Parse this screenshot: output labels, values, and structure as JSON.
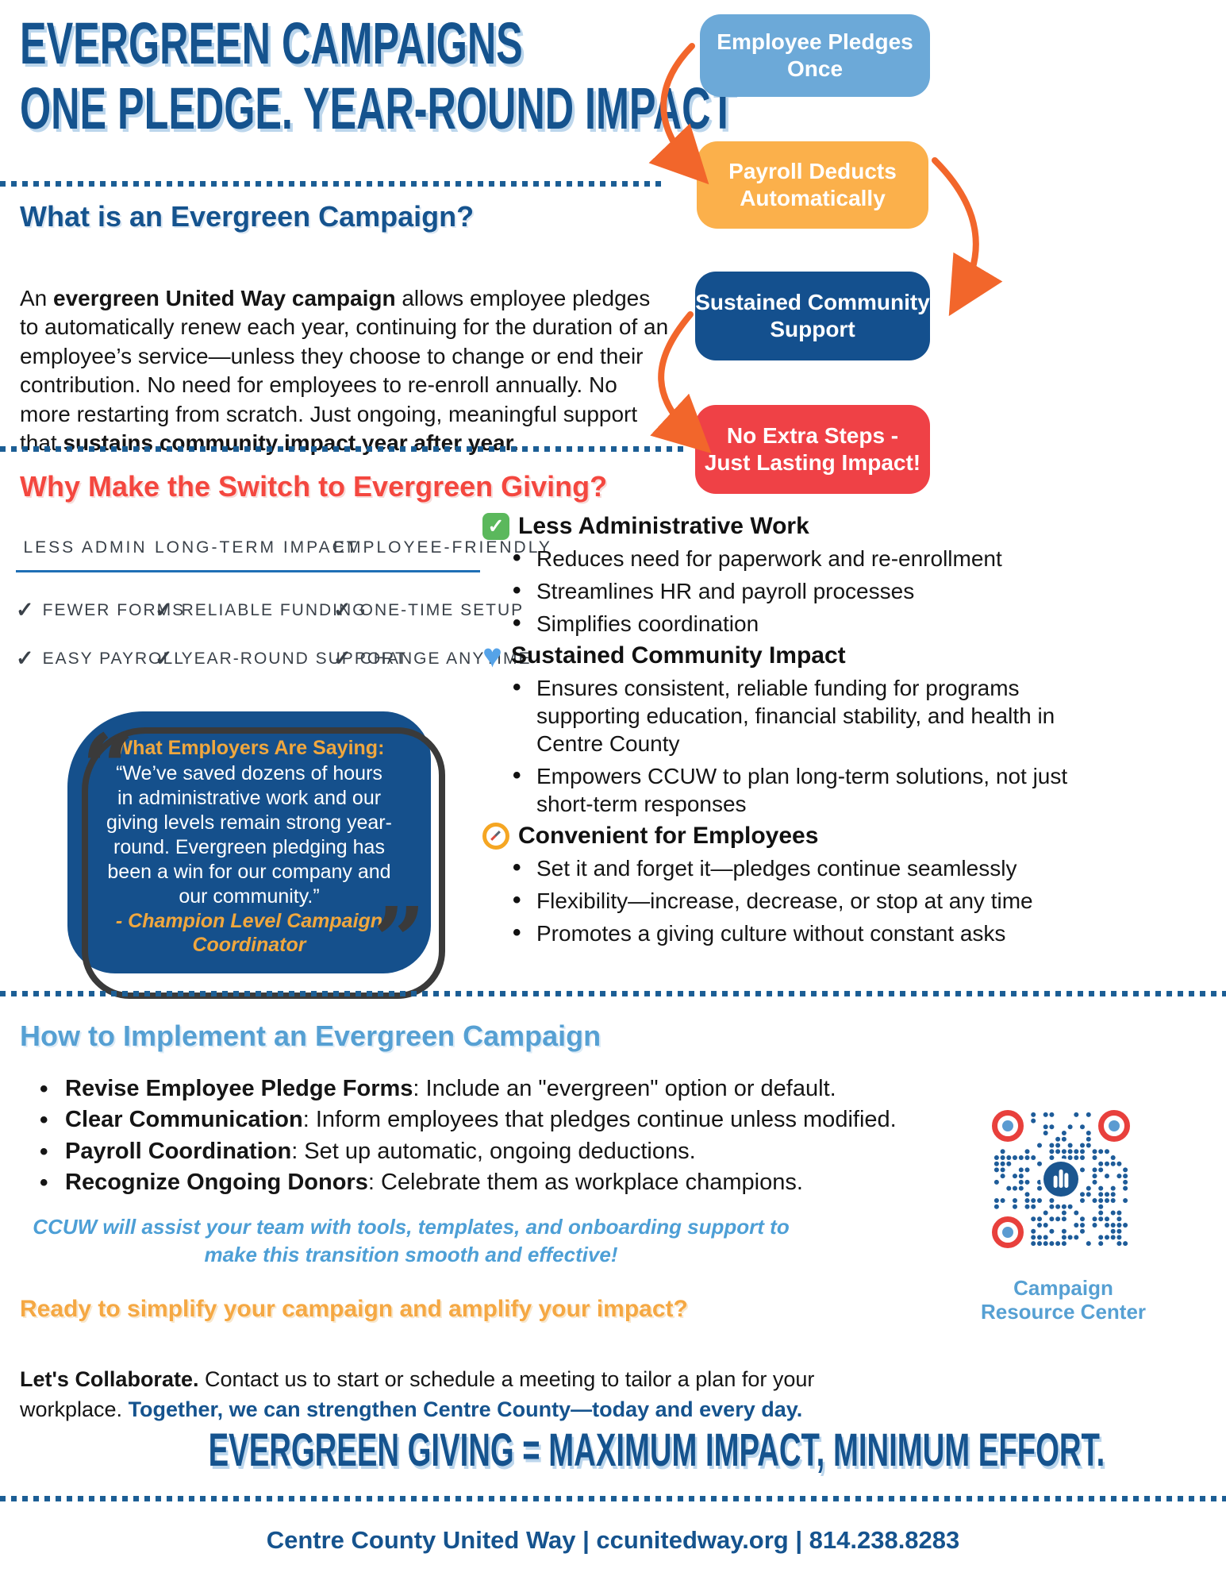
{
  "header": {
    "title_line1": "EVERGREEN CAMPAIGNS",
    "title_line2": "ONE PLEDGE. YEAR-ROUND IMPACT"
  },
  "flow": {
    "steps": [
      {
        "lines": [
          "Employee Pledges",
          "Once"
        ],
        "color": "#6CA9D8"
      },
      {
        "lines": [
          "Payroll Deducts",
          "Automatically"
        ],
        "color": "#FBB04B"
      },
      {
        "lines": [
          "Sustained Community",
          "Support"
        ],
        "color": "#14508E"
      },
      {
        "lines": [
          "No Extra Steps -",
          "Just Lasting Impact!"
        ],
        "color": "#EF4146"
      }
    ]
  },
  "what_section": {
    "heading": "What is an Evergreen Campaign?",
    "p_part1": "An ",
    "p_bold1": "evergreen United Way campaign",
    "p_part2": " allows employee pledges to automatically renew each year, continuing for the duration of an employee’s service—unless they choose to change or end their contribution. No need for employees to re-enroll annually. No more restarting from scratch. Just ongoing, meaningful support that ",
    "p_bold2": "sustains community impact year after year."
  },
  "why_section": {
    "heading": "Why Make the Switch to Evergreen Giving?",
    "table": {
      "headers": [
        "LESS ADMIN",
        "LONG-TERM IMPACT",
        "EMPLOYEE-FRIENDLY"
      ],
      "check": "✓",
      "rows": [
        [
          "FEWER FORMS",
          "RELIABLE FUNDING",
          "ONE-TIME SETUP"
        ],
        [
          "EASY PAYROLL",
          "YEAR-ROUND SUPPORT",
          "CHANGE ANYTIME"
        ]
      ]
    },
    "quote": {
      "label": "What Employers Are Saying:",
      "text": "“We’ve saved dozens of hours in administrative work and our giving levels remain strong year-round. Evergreen pledging has been a win for our company and our community.”",
      "attribution_line1": "- Champion Level Campaign",
      "attribution_line2": "Coordinator"
    },
    "benefit_groups": [
      {
        "icon": "green-check-icon",
        "title": "Less Administrative Work",
        "items": [
          "Reduces need for paperwork and re-enrollment",
          "Streamlines HR and payroll processes",
          "Simplifies coordination"
        ]
      },
      {
        "icon": "blue-heart-icon",
        "title": "Sustained Community Impact",
        "items": [
          "Ensures consistent, reliable funding for programs supporting education, financial stability, and health in Centre County",
          "Empowers CCUW to plan long-term solutions, not just short-term responses"
        ]
      },
      {
        "icon": "compass-icon",
        "title": "Convenient for Employees",
        "items": [
          "Set it and forget it—pledges continue seamlessly",
          "Flexibility—increase, decrease, or stop at any time",
          "Promotes a giving culture without constant asks"
        ]
      }
    ]
  },
  "how_section": {
    "heading": "How to Implement an Evergreen Campaign",
    "items": [
      {
        "bold": "Revise Employee Pledge Forms",
        "rest": ": Include an \"evergreen\" option or default."
      },
      {
        "bold": "Clear Communication",
        "rest": ": Inform employees that pledges continue unless modified."
      },
      {
        "bold": "Payroll Coordination",
        "rest": ": Set up automatic, ongoing deductions."
      },
      {
        "bold": "Recognize Ongoing Donors",
        "rest": ": Celebrate them as workplace champions."
      }
    ],
    "assist_note": "CCUW will assist your team with tools, templates, and onboarding support to make this transition smooth and effective!",
    "ready_heading": "Ready to simplify your campaign and amplify your impact?",
    "collaborate_bold": "Let's Collaborate.",
    "collaborate_text": " Contact us to start or schedule a meeting to tailor a plan for your workplace. ",
    "collaborate_blue": "Together, we can strengthen Centre County—today and every day."
  },
  "qr": {
    "caption_line1": "Campaign",
    "caption_line2": "Resource Center"
  },
  "bottom": {
    "tagline": "EVERGREEN GIVING = MAXIMUM IMPACT, MINIMUM EFFORT.",
    "footer": "Centre County United Way | ccunitedway.org | 814.238.8283"
  },
  "colors": {
    "dark_blue": "#15538E",
    "light_blue": "#56A0D3",
    "box_light_blue": "#6CA9D8",
    "box_orange": "#FBB04B",
    "box_dark_blue": "#14508E",
    "box_red": "#EF4146",
    "heading_red": "#F4473F",
    "heading_orange": "#F5A843",
    "arrow_orange": "#F2662B",
    "quote_gold": "#F0A73E",
    "title_shadow": "#BCD6EC"
  }
}
